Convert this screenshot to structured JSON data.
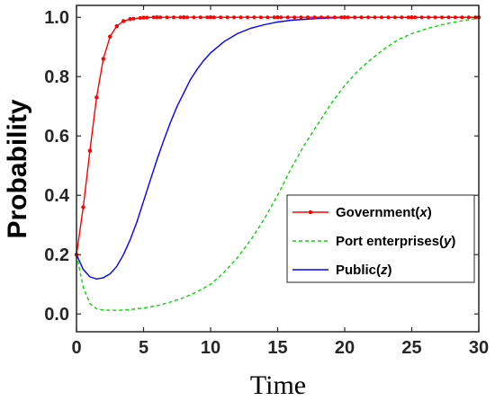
{
  "chart_data": {
    "type": "line",
    "xlabel": "Time",
    "ylabel": "Probability",
    "xlim": [
      0,
      30
    ],
    "ylim": [
      -0.06,
      1.04
    ],
    "xticks": [
      0,
      5,
      10,
      15,
      20,
      25,
      30
    ],
    "xtick_labels": [
      "0",
      "5",
      "10",
      "15",
      "20",
      "25",
      "30"
    ],
    "yticks": [
      0.0,
      0.2,
      0.4,
      0.6,
      0.8,
      1.0
    ],
    "ytick_labels": [
      "0.0",
      "0.2",
      "0.4",
      "0.6",
      "0.8",
      "1.0"
    ],
    "grid": false,
    "legend_position": "center-right",
    "series": [
      {
        "name": "Government(x)",
        "name_parts": [
          "Government(",
          "x",
          ")"
        ],
        "color": "#ff0000",
        "style": "solid-with-markers",
        "x": [
          0,
          0.5,
          1,
          1.5,
          2,
          2.5,
          3,
          3.5,
          4,
          5,
          6,
          8,
          10,
          15,
          20,
          25,
          30
        ],
        "y": [
          0.2,
          0.36,
          0.55,
          0.73,
          0.86,
          0.935,
          0.97,
          0.987,
          0.994,
          0.999,
          1.0,
          1.0,
          1.0,
          1.0,
          1.0,
          1.0,
          1.0
        ]
      },
      {
        "name": "Port enterprises(y)",
        "name_parts": [
          "Port enterprises(",
          "y",
          ")"
        ],
        "color": "#00dd00",
        "style": "dashed",
        "x": [
          0,
          0.5,
          1,
          1.5,
          2,
          3,
          4,
          5,
          6,
          7,
          8,
          9,
          10,
          11,
          12,
          13,
          14,
          15,
          16,
          17,
          18,
          19,
          20,
          21,
          22,
          23,
          24,
          25,
          26,
          27,
          28,
          29,
          30
        ],
        "y": [
          0.2,
          0.09,
          0.035,
          0.018,
          0.013,
          0.012,
          0.015,
          0.02,
          0.028,
          0.04,
          0.055,
          0.075,
          0.1,
          0.14,
          0.19,
          0.25,
          0.32,
          0.4,
          0.49,
          0.57,
          0.64,
          0.71,
          0.77,
          0.82,
          0.86,
          0.895,
          0.925,
          0.945,
          0.96,
          0.972,
          0.982,
          0.99,
          0.997
        ]
      },
      {
        "name": "Public(z)",
        "name_parts": [
          "Public(",
          "z",
          ")"
        ],
        "color": "#0000ff",
        "style": "solid",
        "x": [
          0,
          0.5,
          1,
          1.5,
          2,
          2.5,
          3,
          3.5,
          4,
          4.5,
          5,
          5.5,
          6,
          6.5,
          7,
          7.5,
          8,
          8.5,
          9,
          9.5,
          10,
          11,
          12,
          13,
          14,
          15,
          16,
          17,
          18,
          19,
          20,
          22,
          25,
          30
        ],
        "y": [
          0.2,
          0.15,
          0.125,
          0.118,
          0.122,
          0.135,
          0.16,
          0.2,
          0.25,
          0.31,
          0.38,
          0.45,
          0.52,
          0.585,
          0.645,
          0.7,
          0.745,
          0.79,
          0.825,
          0.855,
          0.88,
          0.918,
          0.945,
          0.963,
          0.975,
          0.984,
          0.99,
          0.993,
          0.996,
          0.998,
          0.999,
          1.0,
          1.0,
          1.0
        ]
      }
    ]
  }
}
